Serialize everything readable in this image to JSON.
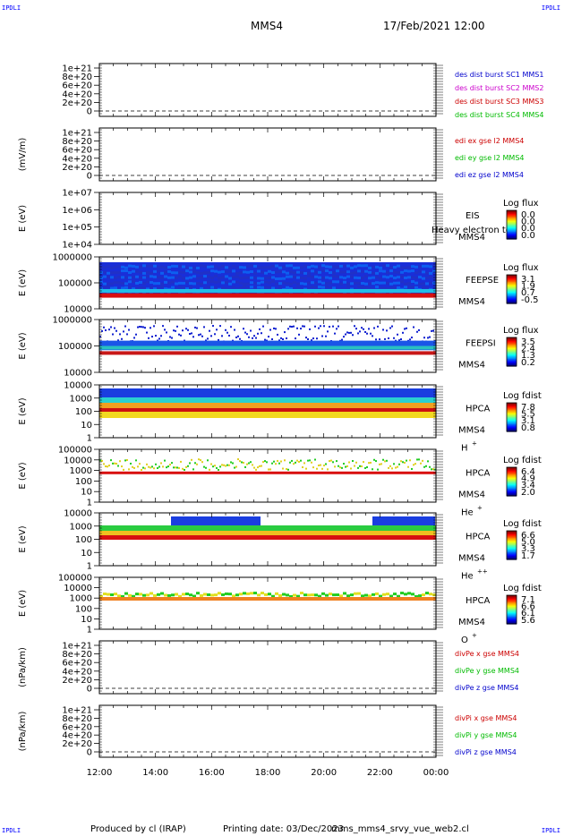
{
  "header": {
    "corner_tl": "IPDLI",
    "corner_tr": "IPDLI",
    "corner_bl": "IPDLI",
    "corner_br": "IPDLI",
    "spacecraft": "MMS4",
    "datetime": "17/Feb/2021 12:00"
  },
  "footer": {
    "produced_by": "Produced by cl (IRAP)",
    "printing_date": "Printing date: 03/Dec/2023",
    "script": "mms_mms4_srvy_vue_web2.cl"
  },
  "chart_data": {
    "type": "heatmap",
    "time_axis": {
      "ticks": [
        "12:00",
        "14:00",
        "16:00",
        "18:00",
        "20:00",
        "22:00",
        "00:00"
      ],
      "range_hours": [
        12,
        24
      ]
    },
    "panels": [
      {
        "id": "p1",
        "kind": "line",
        "ylabel": "",
        "yticks": [
          "1e+21",
          "8e+20",
          "6e+20",
          "4e+20",
          "2e+20",
          "0"
        ],
        "legend": [
          {
            "text": "des dist burst SC1 MMS1",
            "color": "#0000cc"
          },
          {
            "text": "des dist burst SC2 MMS2",
            "color": "#cc00cc"
          },
          {
            "text": "des dist burst SC3 MMS3",
            "color": "#cc0000"
          },
          {
            "text": "des dist burst SC4 MMS4",
            "color": "#00bb00"
          }
        ]
      },
      {
        "id": "p2",
        "kind": "line",
        "ylabel": "(mV/m)",
        "yticks": [
          "1e+21",
          "8e+20",
          "6e+20",
          "4e+20",
          "2e+20",
          "0"
        ],
        "legend": [
          {
            "text": "edi ex gse l2 MMS4",
            "color": "#cc0000"
          },
          {
            "text": "edi ey gse l2 MMS4",
            "color": "#00bb00"
          },
          {
            "text": "edi ez gse l2 MMS4",
            "color": "#0000cc"
          }
        ]
      },
      {
        "id": "p3",
        "kind": "spectrogram",
        "ylabel": "E (eV)",
        "yticks": [
          "1e+07",
          "1e+06",
          "1e+05",
          "1e+04"
        ],
        "instrument": [
          "EIS",
          "MMS4"
        ],
        "note": "Heavy electron to",
        "colorbar": {
          "title": "Log flux",
          "values": [
            "0.0",
            "0.0",
            "0.0",
            "0.0"
          ]
        },
        "empty": true
      },
      {
        "id": "p4",
        "kind": "spectrogram",
        "ylabel": "E (eV)",
        "yticks": [
          "1000000",
          "100000",
          "10000"
        ],
        "instrument": [
          "FEEPSE",
          "MMS4"
        ],
        "colorbar": {
          "title": "Log flux",
          "values": [
            "3.1",
            "1.9",
            "0.7",
            "-0.5"
          ]
        }
      },
      {
        "id": "p5",
        "kind": "spectrogram",
        "ylabel": "E (eV)",
        "yticks": [
          "1000000",
          "100000",
          "10000"
        ],
        "instrument": [
          "FEEPSI",
          "MMS4"
        ],
        "colorbar": {
          "title": "Log flux",
          "values": [
            "3.5",
            "2.4",
            "1.3",
            "0.2"
          ]
        }
      },
      {
        "id": "p6",
        "kind": "spectrogram",
        "ylabel": "E (eV)",
        "yticks": [
          "10000",
          "1000",
          "100",
          "10",
          "1"
        ],
        "instrument": [
          "HPCA",
          "MMS4"
        ],
        "species": "H",
        "charge": "+",
        "colorbar": {
          "title": "Log fdist",
          "values": [
            "7.8",
            "5.5",
            "3.1",
            "0.8"
          ]
        }
      },
      {
        "id": "p7",
        "kind": "spectrogram",
        "ylabel": "E (eV)",
        "yticks": [
          "100000",
          "10000",
          "1000",
          "100",
          "10",
          "1"
        ],
        "instrument": [
          "HPCA",
          "MMS4"
        ],
        "species": "He",
        "charge": "+",
        "colorbar": {
          "title": "Log fdist",
          "values": [
            "6.4",
            "4.9",
            "3.4",
            "2.0"
          ]
        }
      },
      {
        "id": "p8",
        "kind": "spectrogram",
        "ylabel": "E (eV)",
        "yticks": [
          "10000",
          "1000",
          "100",
          "10",
          "1"
        ],
        "instrument": [
          "HPCA",
          "MMS4"
        ],
        "species": "He",
        "charge": "++",
        "colorbar": {
          "title": "Log fdist",
          "values": [
            "6.6",
            "5.0",
            "3.3",
            "1.7"
          ]
        }
      },
      {
        "id": "p9",
        "kind": "spectrogram",
        "ylabel": "E (eV)",
        "yticks": [
          "100000",
          "10000",
          "1000",
          "100",
          "10",
          "1"
        ],
        "instrument": [
          "HPCA",
          "MMS4"
        ],
        "species": "O",
        "charge": "+",
        "colorbar": {
          "title": "Log fdist",
          "values": [
            "7.1",
            "6.6",
            "6.1",
            "5.6"
          ]
        }
      },
      {
        "id": "p10",
        "kind": "line",
        "ylabel": "(nPa/km)",
        "yticks": [
          "1e+21",
          "8e+20",
          "6e+20",
          "4e+20",
          "2e+20",
          "0"
        ],
        "legend": [
          {
            "text": "divPe x gse MMS4",
            "color": "#cc0000"
          },
          {
            "text": "divPe y gse MMS4",
            "color": "#00bb00"
          },
          {
            "text": "divPe z gse MMS4",
            "color": "#0000cc"
          }
        ]
      },
      {
        "id": "p11",
        "kind": "line",
        "ylabel": "(nPa/km)",
        "yticks": [
          "1e+21",
          "8e+20",
          "6e+20",
          "4e+20",
          "2e+20",
          "0"
        ],
        "legend": [
          {
            "text": "divPi x gse MMS4",
            "color": "#cc0000"
          },
          {
            "text": "divPi y gse MMS4",
            "color": "#00bb00"
          },
          {
            "text": "divPi z gse MMS4",
            "color": "#0000cc"
          }
        ]
      }
    ]
  }
}
